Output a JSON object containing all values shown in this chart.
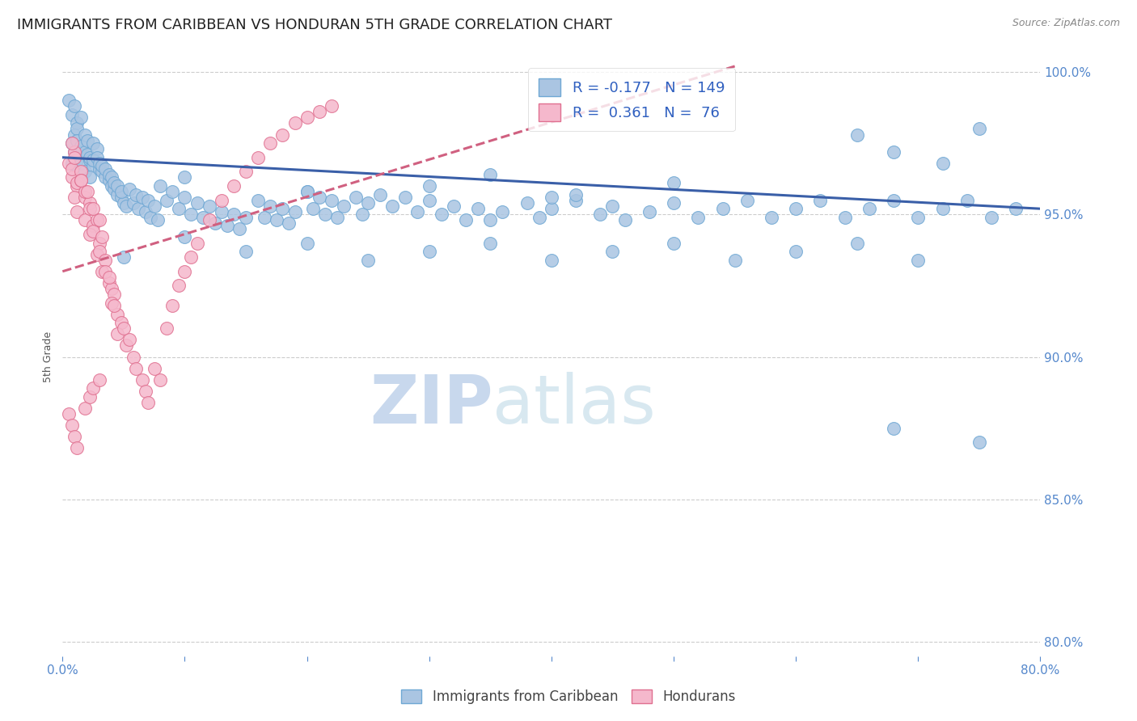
{
  "title": "IMMIGRANTS FROM CARIBBEAN VS HONDURAN 5TH GRADE CORRELATION CHART",
  "source": "Source: ZipAtlas.com",
  "ylabel": "5th Grade",
  "watermark": "ZIPatlas",
  "xlim": [
    0.0,
    0.8
  ],
  "ylim": [
    0.795,
    1.005
  ],
  "xtick_positions": [
    0.0,
    0.1,
    0.2,
    0.3,
    0.4,
    0.5,
    0.6,
    0.7,
    0.8
  ],
  "xticklabels": [
    "0.0%",
    "",
    "",
    "",
    "",
    "",
    "",
    "",
    "80.0%"
  ],
  "yticks_right": [
    0.8,
    0.85,
    0.9,
    0.95,
    1.0
  ],
  "yticklabels_right": [
    "80.0%",
    "85.0%",
    "90.0%",
    "95.0%",
    "100.0%"
  ],
  "series": [
    {
      "name": "Immigrants from Caribbean",
      "color": "#aac5e2",
      "edge_color": "#6fa8d4",
      "R": -0.177,
      "N": 149,
      "trend_color": "#3a5fa8",
      "trend_style": "solid"
    },
    {
      "name": "Hondurans",
      "color": "#f5b8cc",
      "edge_color": "#e07090",
      "R": 0.361,
      "N": 76,
      "trend_color": "#d06080",
      "trend_style": "dashed"
    }
  ],
  "legend_text_color": "#3060c0",
  "axis_color": "#5588cc",
  "grid_color": "#cccccc",
  "background_color": "#ffffff",
  "title_fontsize": 13,
  "axis_label_fontsize": 9,
  "tick_fontsize": 11,
  "legend_fontsize": 13,
  "watermark_fontsize": 60,
  "watermark_color": "#d8e8f5",
  "blue_points_x": [
    0.005,
    0.008,
    0.01,
    0.012,
    0.01,
    0.008,
    0.012,
    0.015,
    0.01,
    0.008,
    0.012,
    0.015,
    0.018,
    0.015,
    0.012,
    0.018,
    0.02,
    0.015,
    0.02,
    0.025,
    0.022,
    0.018,
    0.022,
    0.025,
    0.028,
    0.022,
    0.025,
    0.03,
    0.028,
    0.032,
    0.03,
    0.035,
    0.032,
    0.038,
    0.035,
    0.04,
    0.038,
    0.042,
    0.04,
    0.045,
    0.042,
    0.048,
    0.045,
    0.05,
    0.048,
    0.052,
    0.055,
    0.058,
    0.06,
    0.062,
    0.065,
    0.068,
    0.07,
    0.072,
    0.075,
    0.078,
    0.08,
    0.085,
    0.09,
    0.095,
    0.1,
    0.105,
    0.11,
    0.115,
    0.12,
    0.125,
    0.13,
    0.135,
    0.14,
    0.145,
    0.15,
    0.16,
    0.165,
    0.17,
    0.175,
    0.18,
    0.185,
    0.19,
    0.2,
    0.205,
    0.21,
    0.215,
    0.22,
    0.225,
    0.23,
    0.24,
    0.245,
    0.25,
    0.26,
    0.27,
    0.28,
    0.29,
    0.3,
    0.31,
    0.32,
    0.33,
    0.34,
    0.35,
    0.36,
    0.38,
    0.39,
    0.4,
    0.42,
    0.44,
    0.45,
    0.46,
    0.48,
    0.5,
    0.52,
    0.54,
    0.56,
    0.58,
    0.6,
    0.62,
    0.64,
    0.66,
    0.68,
    0.7,
    0.72,
    0.74,
    0.76,
    0.78,
    0.65,
    0.68,
    0.72,
    0.75,
    0.05,
    0.1,
    0.15,
    0.2,
    0.25,
    0.3,
    0.35,
    0.4,
    0.45,
    0.5,
    0.55,
    0.6,
    0.65,
    0.7,
    0.75,
    0.1,
    0.2,
    0.3,
    0.4,
    0.5,
    0.68,
    0.35,
    0.42
  ],
  "blue_points_y": [
    0.99,
    0.985,
    0.988,
    0.982,
    0.978,
    0.975,
    0.98,
    0.984,
    0.972,
    0.968,
    0.976,
    0.971,
    0.978,
    0.974,
    0.969,
    0.972,
    0.976,
    0.968,
    0.971,
    0.975,
    0.969,
    0.965,
    0.97,
    0.967,
    0.973,
    0.963,
    0.969,
    0.966,
    0.97,
    0.965,
    0.968,
    0.963,
    0.967,
    0.962,
    0.966,
    0.96,
    0.964,
    0.959,
    0.963,
    0.957,
    0.961,
    0.956,
    0.96,
    0.954,
    0.958,
    0.953,
    0.959,
    0.954,
    0.957,
    0.952,
    0.956,
    0.951,
    0.955,
    0.949,
    0.953,
    0.948,
    0.96,
    0.955,
    0.958,
    0.952,
    0.956,
    0.95,
    0.954,
    0.949,
    0.953,
    0.947,
    0.951,
    0.946,
    0.95,
    0.945,
    0.949,
    0.955,
    0.949,
    0.953,
    0.948,
    0.952,
    0.947,
    0.951,
    0.958,
    0.952,
    0.956,
    0.95,
    0.955,
    0.949,
    0.953,
    0.956,
    0.95,
    0.954,
    0.957,
    0.953,
    0.956,
    0.951,
    0.955,
    0.95,
    0.953,
    0.948,
    0.952,
    0.948,
    0.951,
    0.954,
    0.949,
    0.952,
    0.955,
    0.95,
    0.953,
    0.948,
    0.951,
    0.954,
    0.949,
    0.952,
    0.955,
    0.949,
    0.952,
    0.955,
    0.949,
    0.952,
    0.955,
    0.949,
    0.952,
    0.955,
    0.949,
    0.952,
    0.978,
    0.972,
    0.968,
    0.98,
    0.935,
    0.942,
    0.937,
    0.94,
    0.934,
    0.937,
    0.94,
    0.934,
    0.937,
    0.94,
    0.934,
    0.937,
    0.94,
    0.934,
    0.87,
    0.963,
    0.958,
    0.96,
    0.956,
    0.961,
    0.875,
    0.964,
    0.957
  ],
  "pink_points_x": [
    0.005,
    0.008,
    0.01,
    0.008,
    0.012,
    0.01,
    0.015,
    0.012,
    0.018,
    0.015,
    0.012,
    0.018,
    0.022,
    0.018,
    0.022,
    0.025,
    0.022,
    0.028,
    0.025,
    0.03,
    0.028,
    0.032,
    0.03,
    0.035,
    0.032,
    0.038,
    0.035,
    0.04,
    0.038,
    0.042,
    0.04,
    0.045,
    0.042,
    0.048,
    0.045,
    0.052,
    0.05,
    0.055,
    0.058,
    0.06,
    0.065,
    0.068,
    0.07,
    0.075,
    0.08,
    0.085,
    0.09,
    0.095,
    0.1,
    0.105,
    0.11,
    0.12,
    0.13,
    0.14,
    0.15,
    0.16,
    0.17,
    0.18,
    0.19,
    0.2,
    0.21,
    0.22,
    0.008,
    0.01,
    0.015,
    0.02,
    0.025,
    0.03,
    0.005,
    0.008,
    0.01,
    0.012,
    0.018,
    0.022,
    0.025,
    0.03
  ],
  "pink_points_y": [
    0.968,
    0.963,
    0.972,
    0.966,
    0.96,
    0.956,
    0.965,
    0.961,
    0.956,
    0.962,
    0.951,
    0.958,
    0.954,
    0.948,
    0.952,
    0.946,
    0.943,
    0.948,
    0.944,
    0.94,
    0.936,
    0.942,
    0.937,
    0.934,
    0.93,
    0.926,
    0.93,
    0.924,
    0.928,
    0.922,
    0.919,
    0.915,
    0.918,
    0.912,
    0.908,
    0.904,
    0.91,
    0.906,
    0.9,
    0.896,
    0.892,
    0.888,
    0.884,
    0.896,
    0.892,
    0.91,
    0.918,
    0.925,
    0.93,
    0.935,
    0.94,
    0.948,
    0.955,
    0.96,
    0.965,
    0.97,
    0.975,
    0.978,
    0.982,
    0.984,
    0.986,
    0.988,
    0.975,
    0.97,
    0.962,
    0.958,
    0.952,
    0.948,
    0.88,
    0.876,
    0.872,
    0.868,
    0.882,
    0.886,
    0.889,
    0.892
  ]
}
